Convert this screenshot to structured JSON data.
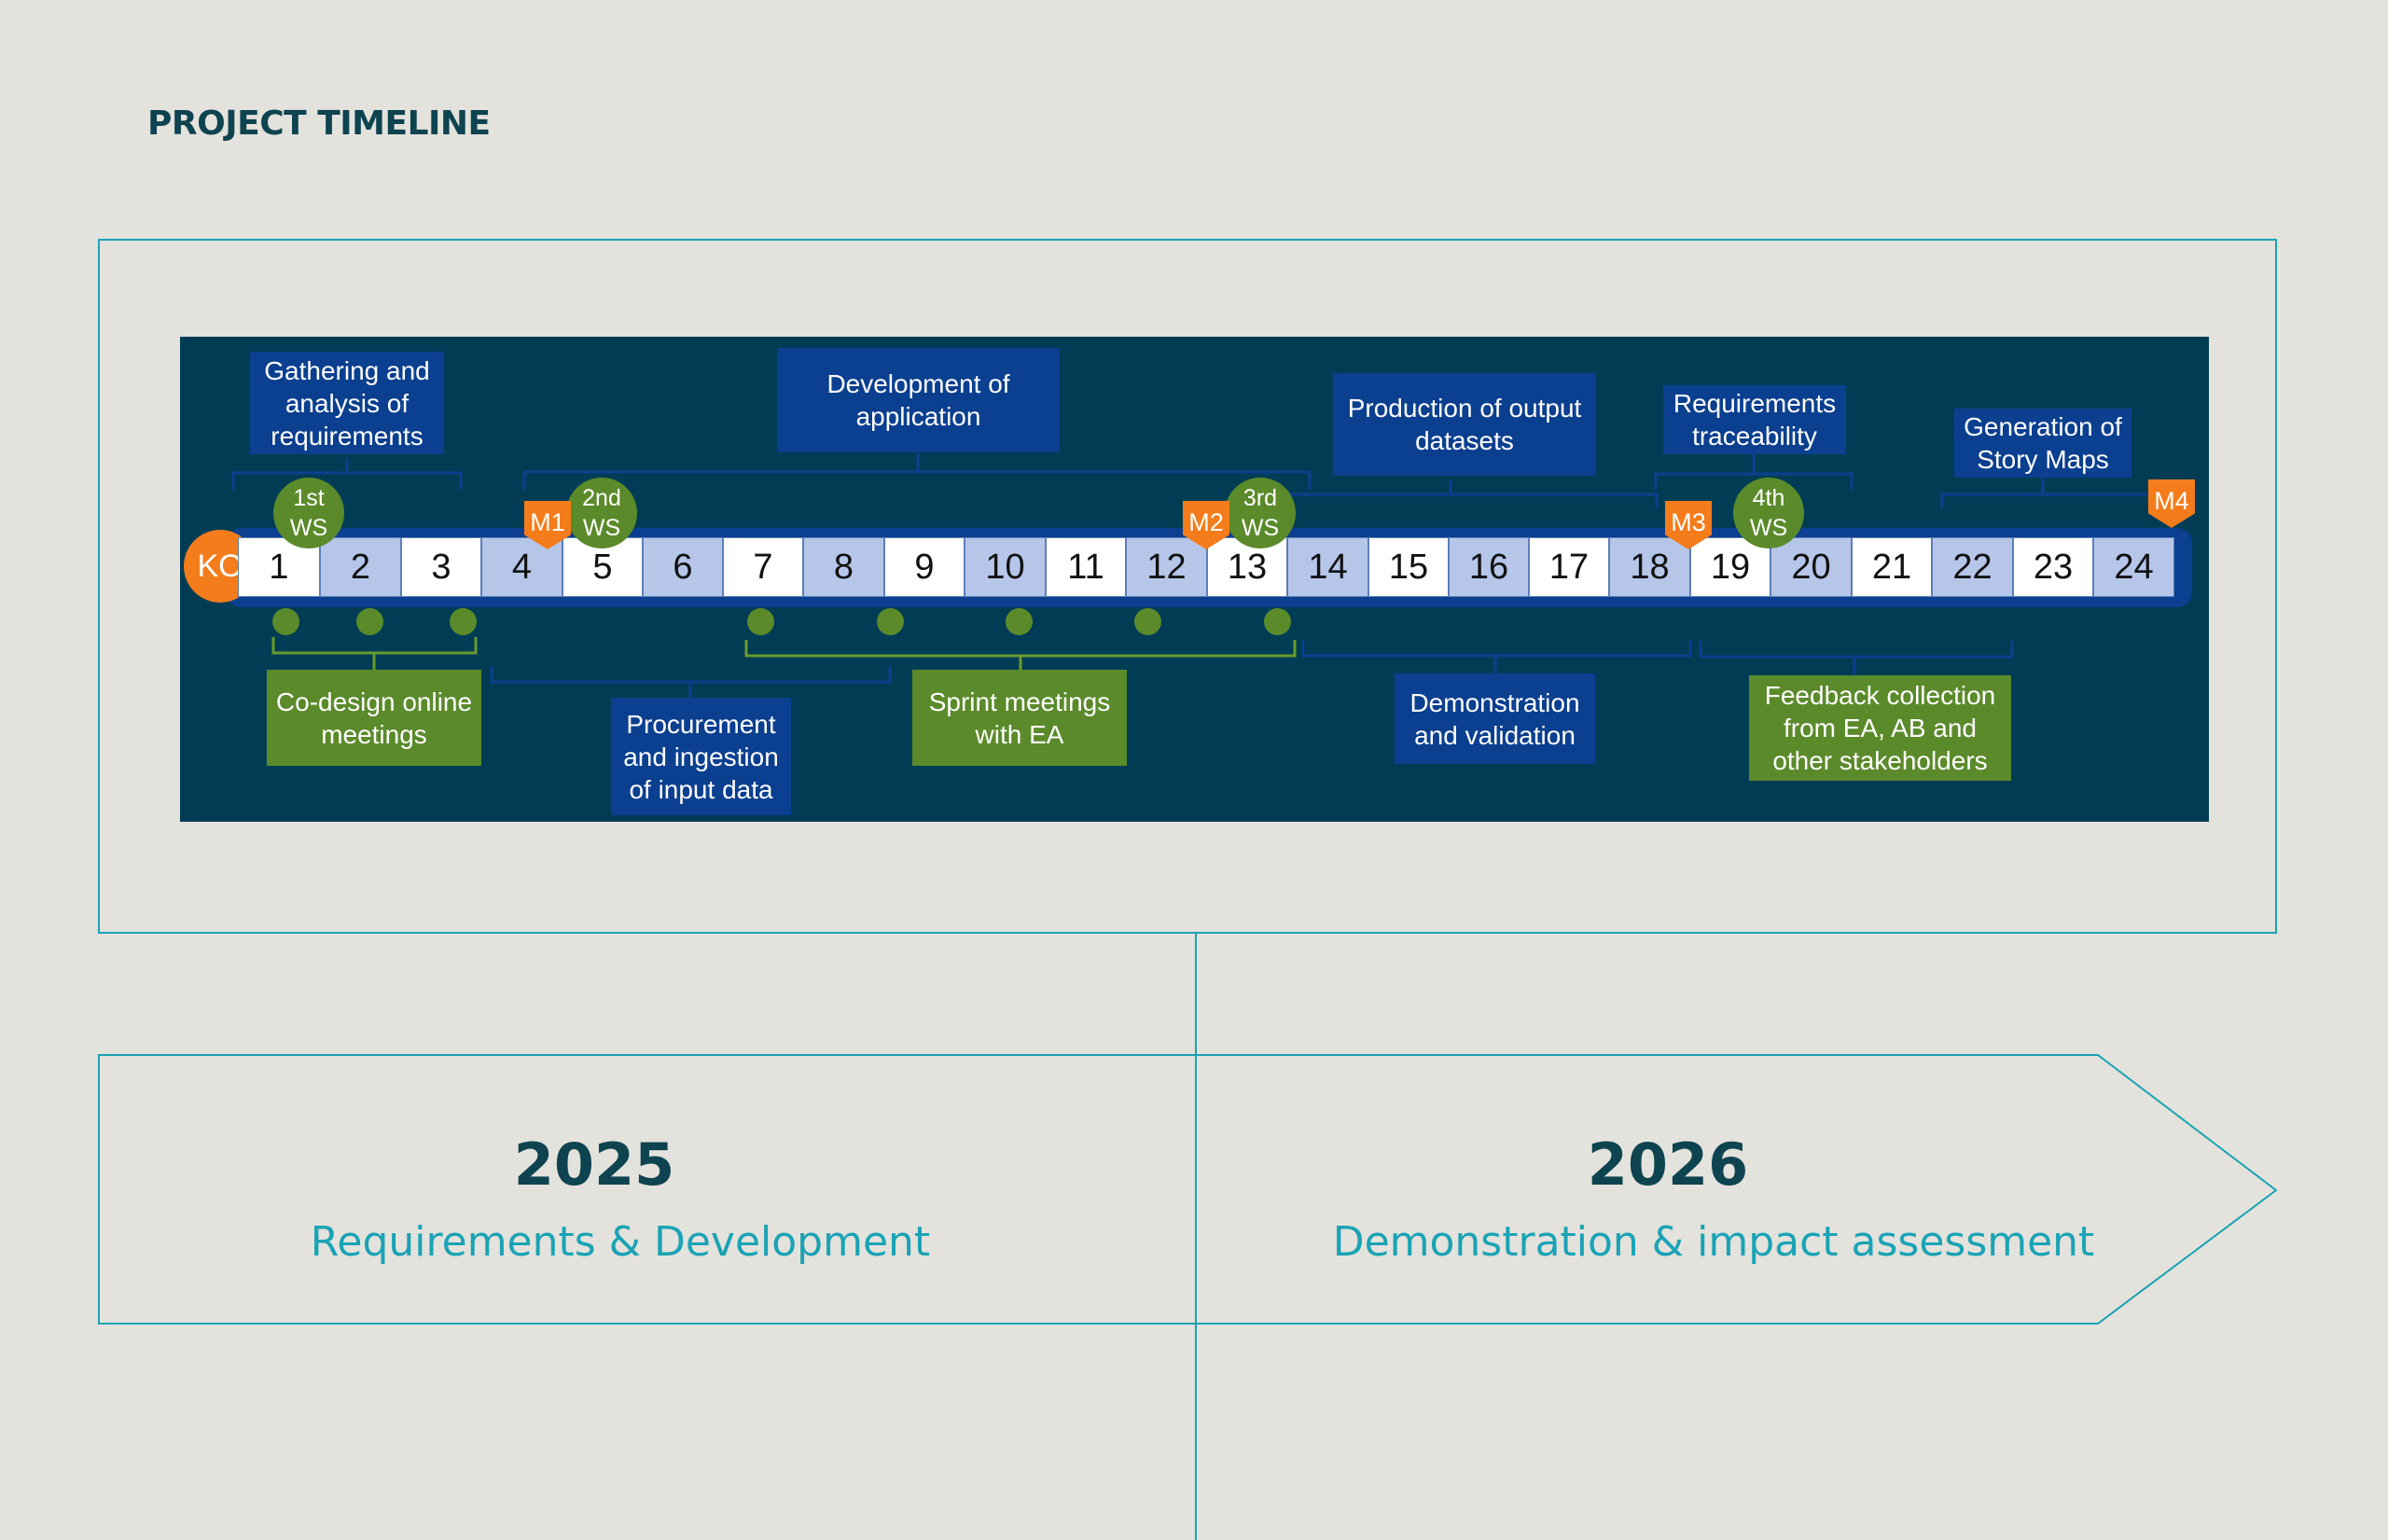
{
  "title": "PROJECT TIMELINE",
  "ko_label": "KO",
  "months": [
    "1",
    "2",
    "3",
    "4",
    "5",
    "6",
    "7",
    "8",
    "9",
    "10",
    "11",
    "12",
    "13",
    "14",
    "15",
    "16",
    "17",
    "18",
    "19",
    "20",
    "21",
    "22",
    "23",
    "24"
  ],
  "workshops": [
    {
      "line1": "1st",
      "line2": "WS"
    },
    {
      "line1": "2nd",
      "line2": "WS"
    },
    {
      "line1": "3rd",
      "line2": "WS"
    },
    {
      "line1": "4th",
      "line2": "WS"
    }
  ],
  "milestones": [
    "M1",
    "M2",
    "M3",
    "M4"
  ],
  "activities_top": {
    "gathering": {
      "lines": [
        "Gathering and",
        "analysis of",
        "requirements"
      ]
    },
    "development": {
      "lines": [
        "Development of",
        "application"
      ]
    },
    "production": {
      "lines": [
        "Production of output",
        "datasets"
      ]
    },
    "traceability": {
      "lines": [
        "Requirements",
        "traceability"
      ]
    },
    "story_maps": {
      "lines": [
        "Generation of",
        "Story Maps"
      ]
    }
  },
  "activities_bottom": {
    "codesign": {
      "lines": [
        "Co-design online",
        "meetings"
      ]
    },
    "procurement": {
      "lines": [
        "Procurement",
        "and ingestion",
        "of input data"
      ]
    },
    "sprint": {
      "lines": [
        "Sprint meetings",
        "with EA"
      ]
    },
    "demonstration": {
      "lines": [
        "Demonstration",
        "and validation"
      ]
    },
    "feedback": {
      "lines": [
        "Feedback collection",
        "from EA, AB and",
        "other stakeholders"
      ]
    }
  },
  "phases": [
    {
      "year": "2025",
      "label": "Requirements & Development"
    },
    {
      "year": "2026",
      "label": "Demonstration & impact assessment"
    }
  ],
  "colors": {
    "background": "#e3e2dc",
    "panel": "#003d55",
    "dark_blue": "#0b3f8f",
    "light_blue": "#b6c6e9",
    "green": "#5b8a2b",
    "orange": "#f47c1b",
    "teal": "#1aa3b5",
    "title": "#0e4350"
  }
}
